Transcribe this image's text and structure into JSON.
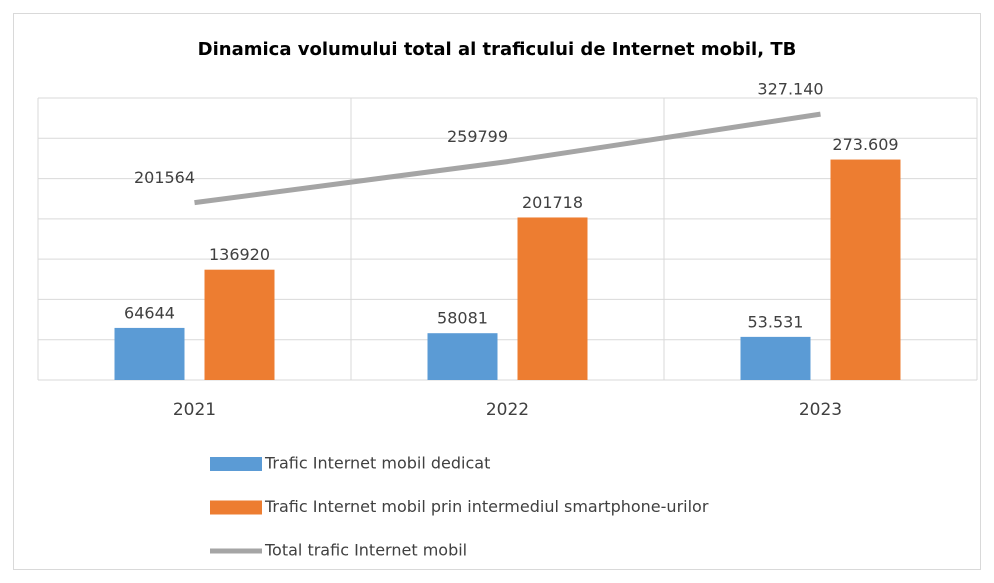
{
  "chart_data": {
    "type": "bar_line",
    "title": "Dinamica volumului total al traficului de Internet mobil, TB",
    "categories": [
      "2021",
      "2022",
      "2023"
    ],
    "series": [
      {
        "name": "Trafic Internet mobil dedicat",
        "color": "#5b9bd5",
        "type": "bar",
        "values": [
          64644,
          58081,
          53531
        ],
        "value_labels": [
          "64644",
          "58081",
          "53.531"
        ]
      },
      {
        "name": "Trafic Internet mobil prin intermediul smartphone-urilor",
        "color": "#ed7d31",
        "type": "bar",
        "values": [
          136920,
          201718,
          273609
        ],
        "value_labels": [
          "136920",
          "201718",
          "273.609"
        ]
      },
      {
        "name": "Total trafic Internet mobil",
        "color": "#a5a5a5",
        "type": "line",
        "axis": "y2",
        "values": [
          201564,
          259799,
          327140
        ],
        "value_labels": [
          "201564",
          "259799",
          "327.140"
        ]
      }
    ],
    "ylim": [
      0,
      350000
    ],
    "yticks": [
      0,
      50000,
      100000,
      150000,
      200000,
      250000,
      300000,
      350000
    ],
    "y2lim": [
      -50000,
      350000
    ],
    "grid": true,
    "legend": "bottom"
  }
}
